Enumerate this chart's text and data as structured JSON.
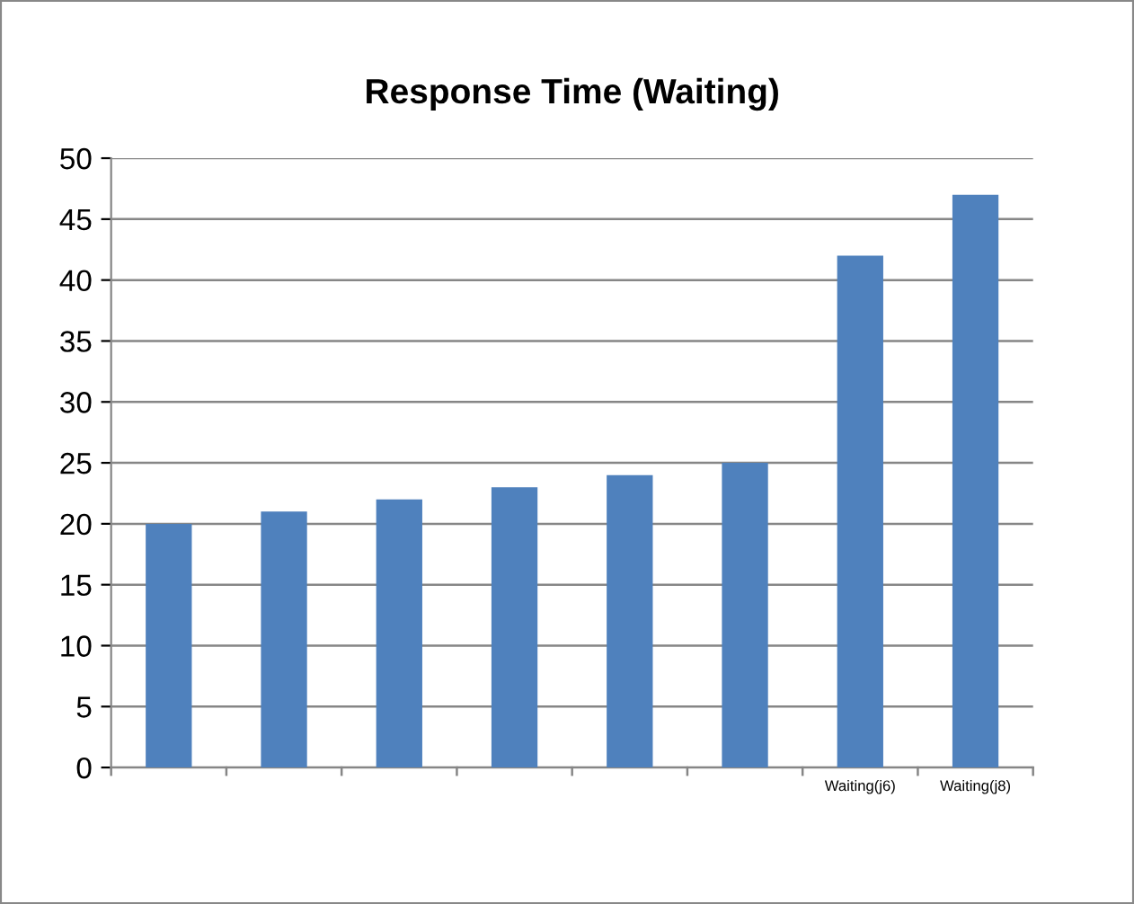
{
  "chart_data": {
    "type": "bar",
    "title": "Response Time (Waiting)",
    "categories": [
      null,
      null,
      null,
      null,
      null,
      null,
      "Waiting(j6)",
      "Waiting(j8)"
    ],
    "values": [
      20,
      21,
      22,
      23,
      24,
      25,
      42,
      47
    ],
    "color": "#4f81bd",
    "ylim": [
      0,
      50
    ],
    "yticks": [
      0,
      5,
      10,
      15,
      20,
      25,
      30,
      35,
      40,
      45,
      50
    ],
    "grid": "y",
    "legend": false
  }
}
